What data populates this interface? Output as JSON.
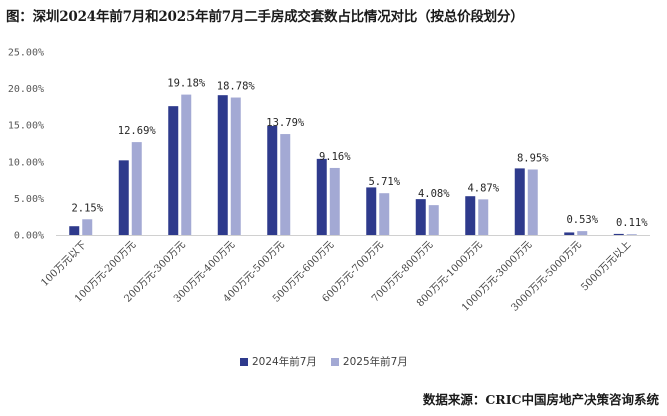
{
  "title": "图：深圳2024年前7月和2025年前7月二手房成交套数占比情况对比（按总价段划分）",
  "source": "数据来源：CRIC中国房地产决策咨询系统",
  "chart_data": {
    "type": "bar",
    "categories": [
      "100万元以下",
      "100万元-200万元",
      "200万元-300万元",
      "300万元-400万元",
      "400万元-500万元",
      "500万元-600万元",
      "600万元-700万元",
      "700万元-800万元",
      "800万元-1000万元",
      "1000万元-3000万元",
      "3000万元-5000万元",
      "5000万元以上"
    ],
    "series": [
      {
        "name": "2024年前7月",
        "color": "#2e3a8c",
        "values": [
          1.2,
          10.2,
          17.6,
          19.1,
          14.9,
          10.4,
          6.5,
          4.9,
          5.3,
          9.1,
          0.35,
          0.15
        ]
      },
      {
        "name": "2025年前7月",
        "color": "#a3a9d4",
        "values": [
          2.15,
          12.69,
          19.18,
          18.78,
          13.79,
          9.16,
          5.71,
          4.08,
          4.87,
          8.95,
          0.53,
          0.11
        ]
      }
    ],
    "data_labels": [
      "2.15%",
      "12.69%",
      "19.18%",
      "18.78%",
      "13.79%",
      "9.16%",
      "5.71%",
      "4.08%",
      "4.87%",
      "8.95%",
      "0.53%",
      "0.11%"
    ],
    "yticks": [
      "0.00%",
      "5.00%",
      "10.00%",
      "15.00%",
      "20.00%",
      "25.00%"
    ],
    "ylim": [
      0,
      25
    ],
    "legend_position": "bottom"
  }
}
